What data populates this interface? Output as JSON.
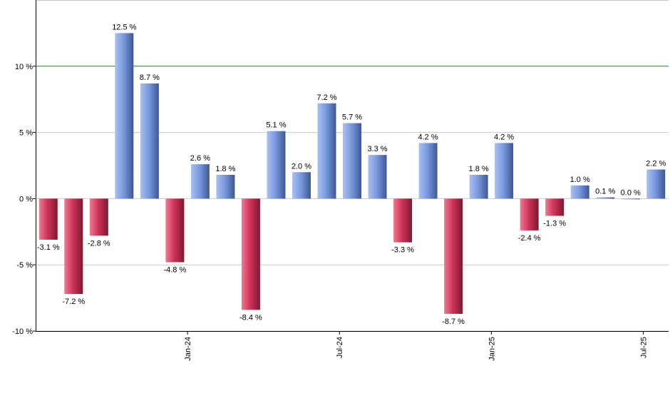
{
  "chart_data": {
    "type": "bar",
    "title": "",
    "xlabel": "",
    "ylabel": "",
    "value_suffix": " %",
    "ylim": [
      -10,
      15
    ],
    "yticks": [
      -10,
      -5,
      0,
      5,
      10
    ],
    "ytick_labels": [
      "-10 %",
      "-5 %",
      "0 %",
      "5 %",
      "10 %"
    ],
    "reference_line": 10,
    "x_tick_labels": [
      {
        "label": "Jan-24",
        "index": 5.5
      },
      {
        "label": "Jul-24",
        "index": 11.5
      },
      {
        "label": "Jan-25",
        "index": 17.5
      },
      {
        "label": "Jul-25",
        "index": 23.5
      }
    ],
    "values": [
      -3.1,
      -7.2,
      -2.8,
      12.5,
      8.7,
      -4.8,
      2.6,
      1.8,
      -8.4,
      5.1,
      2.0,
      7.2,
      5.7,
      3.3,
      -3.3,
      4.2,
      -8.7,
      1.8,
      4.2,
      -2.4,
      -1.3,
      1.0,
      0.1,
      0.0,
      2.2
    ],
    "colors": {
      "positive": "#6f8fd8",
      "negative": "#c8284a",
      "reference_line": "#2e7d32",
      "grid": "#c8c8c8",
      "axis": "#000000"
    }
  }
}
